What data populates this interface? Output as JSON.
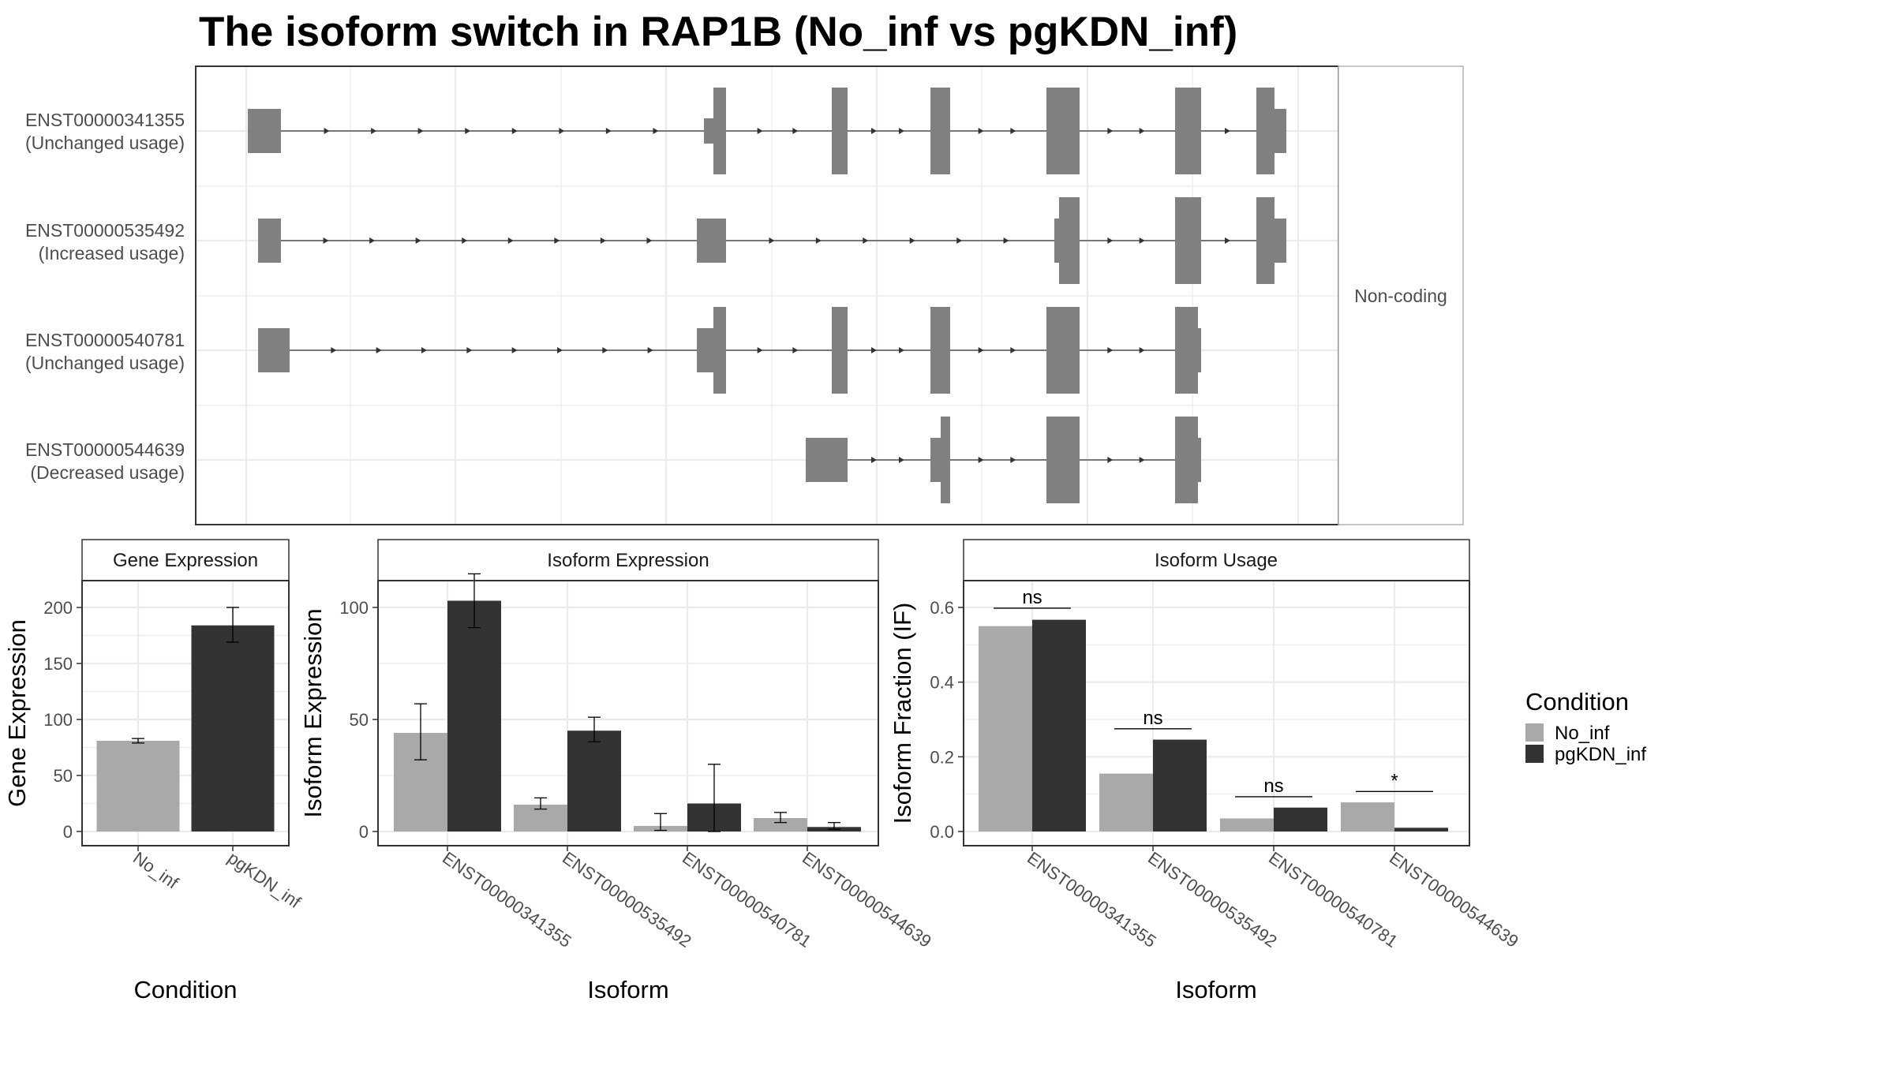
{
  "title": "The isoform switch in RAP1B (No_inf vs pgKDN_inf)",
  "colors": {
    "no_inf": "#a9a9a9",
    "pgkdn_inf": "#333333",
    "exon": "#808080",
    "grid": "#ebebeb",
    "frame": "#333333"
  },
  "structure_panel": {
    "facet_label": "Non-coding",
    "transcripts": [
      {
        "id": "ENST00000341355",
        "usage": "(Unchanged usage)"
      },
      {
        "id": "ENST00000535492",
        "usage": "(Increased usage)"
      },
      {
        "id": "ENST00000540781",
        "usage": "(Unchanged usage)"
      },
      {
        "id": "ENST00000544639",
        "usage": "(Decreased usage)"
      }
    ]
  },
  "legend": {
    "title": "Condition",
    "items": [
      {
        "label": "No_inf",
        "color": "#a9a9a9"
      },
      {
        "label": "pgKDN_inf",
        "color": "#333333"
      }
    ]
  },
  "chart_data": [
    {
      "type": "bar",
      "title": "Gene Expression",
      "xlabel": "Condition",
      "ylabel": "Gene Expression",
      "ylim": [
        0,
        240
      ],
      "yticks": [
        0,
        50,
        100,
        150,
        200
      ],
      "categories": [
        "No_inf",
        "pgKDN_inf"
      ],
      "values": [
        81,
        184
      ],
      "errors": [
        [
          79,
          83
        ],
        [
          169,
          200
        ]
      ],
      "grid": true
    },
    {
      "type": "bar",
      "title": "Isoform Expression",
      "xlabel": "Isoform",
      "ylabel": "Isoform Expression",
      "ylim": [
        0,
        140
      ],
      "yticks": [
        0,
        50,
        100
      ],
      "categories": [
        "ENST00000341355",
        "ENST00000535492",
        "ENST00000540781",
        "ENST00000544639"
      ],
      "series": [
        {
          "name": "No_inf",
          "values": [
            44,
            12,
            2.5,
            6
          ],
          "errors": [
            [
              32,
              57
            ],
            [
              10,
              15
            ],
            [
              0.5,
              8
            ],
            [
              4,
              8.5
            ]
          ]
        },
        {
          "name": "pgKDN_inf",
          "values": [
            103,
            45,
            12.5,
            2
          ],
          "errors": [
            [
              91,
              115
            ],
            [
              40,
              51
            ],
            [
              0,
              30
            ],
            [
              1,
              4
            ]
          ]
        }
      ],
      "grid": true
    },
    {
      "type": "bar",
      "title": "Isoform Usage",
      "xlabel": "Isoform",
      "ylabel": "Isoform Fraction (IF)",
      "ylim": [
        0,
        0.68
      ],
      "yticks": [
        0.0,
        0.2,
        0.4,
        0.6
      ],
      "ytick_labels": [
        "0.0",
        "0.2",
        "0.4",
        "0.6"
      ],
      "categories": [
        "ENST00000341355",
        "ENST00000535492",
        "ENST00000540781",
        "ENST00000544639"
      ],
      "series": [
        {
          "name": "No_inf",
          "values": [
            0.55,
            0.155,
            0.035,
            0.078
          ]
        },
        {
          "name": "pgKDN_inf",
          "values": [
            0.567,
            0.246,
            0.064,
            0.01
          ]
        }
      ],
      "significance": [
        {
          "label": "ns",
          "y": 0.598
        },
        {
          "label": "ns",
          "y": 0.275
        },
        {
          "label": "ns",
          "y": 0.093
        },
        {
          "label": "*",
          "y": 0.107
        }
      ],
      "grid": true
    }
  ]
}
